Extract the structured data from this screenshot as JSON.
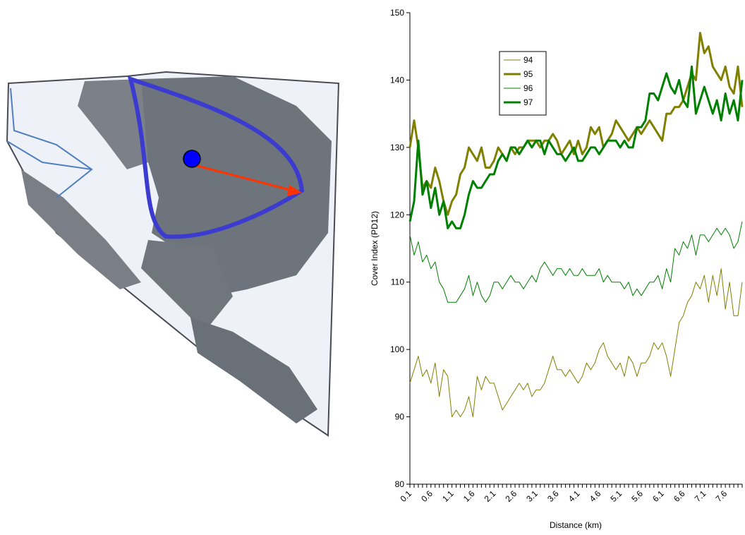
{
  "chart_data": {
    "type": "line",
    "y_label": "Cover Index (PD12)",
    "x_label": "Distance (km)",
    "ylim": [
      80,
      150
    ],
    "yticks": [
      80,
      90,
      100,
      110,
      120,
      130,
      140,
      150
    ],
    "legend": "upper-left",
    "grid": false,
    "categories": [
      "0.1",
      null,
      null,
      null,
      null,
      "0.6",
      null,
      null,
      null,
      null,
      "1.1",
      null,
      null,
      null,
      null,
      "1.6",
      null,
      null,
      null,
      null,
      "2.1",
      null,
      null,
      null,
      null,
      "2.6",
      null,
      null,
      null,
      null,
      "3.1",
      null,
      null,
      null,
      null,
      "3.6",
      null,
      null,
      null,
      null,
      "4.1",
      null,
      null,
      null,
      null,
      "4.6",
      null,
      null,
      null,
      null,
      "5.1",
      null,
      null,
      null,
      null,
      "5.6",
      null,
      null,
      null,
      null,
      "6.1",
      null,
      null,
      null,
      null,
      "6.6",
      null,
      null,
      null,
      null,
      "7.1",
      null,
      null,
      null,
      null,
      "7.6",
      null,
      null,
      null,
      null
    ],
    "series": [
      {
        "name": "94",
        "color": "#808000",
        "line_width": 1,
        "values": [
          95,
          97,
          99,
          96,
          97,
          95,
          98,
          93,
          97,
          96,
          90,
          91,
          90,
          91,
          93,
          90,
          96,
          94,
          96,
          95,
          95,
          93,
          91,
          92,
          93,
          94,
          95,
          94,
          95,
          93,
          94,
          94,
          95,
          97,
          99,
          97,
          97,
          96,
          97,
          96,
          95,
          96,
          98,
          97,
          98,
          100,
          101,
          99,
          98,
          97,
          98,
          96,
          99,
          98,
          96,
          98,
          98,
          99,
          101,
          100,
          101,
          99,
          96,
          100,
          104,
          105,
          107,
          108,
          110,
          109,
          111,
          107,
          111,
          108,
          112,
          106,
          110,
          105,
          105,
          110
        ]
      },
      {
        "name": "95",
        "color": "#808000",
        "line_width": 3,
        "values": [
          130,
          134,
          130,
          124,
          125,
          124,
          127,
          125,
          122,
          120,
          122,
          123,
          126,
          127,
          130,
          129,
          128,
          130,
          127,
          127,
          128,
          130,
          129,
          128,
          130,
          129,
          130,
          130,
          131,
          131,
          131,
          130,
          131,
          131,
          132,
          131,
          129,
          130,
          131,
          129,
          131,
          129,
          130,
          133,
          132,
          133,
          130,
          131,
          132,
          134,
          133,
          132,
          131,
          132,
          133,
          132,
          133,
          134,
          133,
          132,
          131,
          135,
          135,
          136,
          136,
          137,
          139,
          141,
          140,
          147,
          144,
          145,
          142,
          141,
          140,
          142,
          139,
          138,
          142,
          136
        ]
      },
      {
        "name": "96",
        "color": "#008000",
        "line_width": 1,
        "values": [
          117,
          114,
          116,
          113,
          114,
          112,
          113,
          110,
          109,
          107,
          107,
          107,
          108,
          109,
          111,
          108,
          110,
          108,
          107,
          108,
          110,
          110,
          109,
          110,
          111,
          110,
          110,
          109,
          110,
          111,
          110,
          112,
          113,
          112,
          111,
          112,
          112,
          111,
          112,
          111,
          111,
          112,
          111,
          111,
          111,
          112,
          110,
          111,
          110,
          110,
          110,
          109,
          110,
          108,
          109,
          108,
          109,
          110,
          110,
          111,
          109,
          112,
          110,
          115,
          114,
          116,
          115,
          117,
          114,
          117,
          117,
          116,
          117,
          118,
          117,
          118,
          117,
          115,
          116,
          119
        ]
      },
      {
        "name": "97",
        "color": "#008000",
        "line_width": 3,
        "values": [
          119,
          122,
          131,
          123,
          125,
          121,
          124,
          120,
          122,
          118,
          119,
          118,
          118,
          120,
          123,
          125,
          124,
          124,
          125,
          126,
          126,
          128,
          129,
          128,
          130,
          130,
          129,
          130,
          131,
          130,
          131,
          131,
          129,
          131,
          130,
          129,
          129,
          128,
          129,
          130,
          128,
          128,
          129,
          130,
          130,
          129,
          130,
          131,
          131,
          131,
          130,
          131,
          130,
          130,
          133,
          133,
          134,
          138,
          138,
          137,
          139,
          141,
          139,
          138,
          140,
          137,
          136,
          142,
          135,
          137,
          139,
          137,
          135,
          137,
          134,
          138,
          135,
          137,
          134,
          140
        ]
      }
    ]
  }
}
